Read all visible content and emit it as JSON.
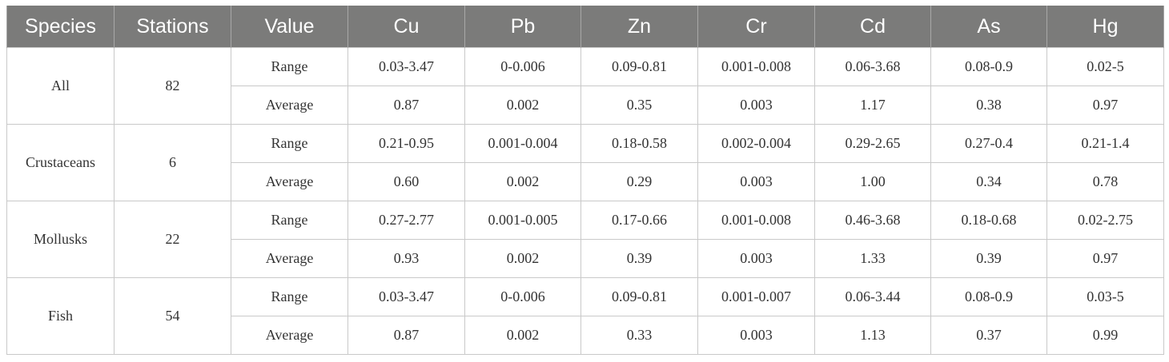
{
  "headers": [
    "Species",
    "Stations",
    "Value",
    "Cu",
    "Pb",
    "Zn",
    "Cr",
    "Cd",
    "As",
    "Hg"
  ],
  "groups": [
    {
      "species": "All",
      "stations": "82",
      "rows": [
        {
          "label": "Range",
          "values": [
            "0.03-3.47",
            "0-0.006",
            "0.09-0.81",
            "0.001-0.008",
            "0.06-3.68",
            "0.08-0.9",
            "0.02-5"
          ]
        },
        {
          "label": "Average",
          "values": [
            "0.87",
            "0.002",
            "0.35",
            "0.003",
            "1.17",
            "0.38",
            "0.97"
          ]
        }
      ]
    },
    {
      "species": "Crustaceans",
      "stations": "6",
      "rows": [
        {
          "label": "Range",
          "values": [
            "0.21-0.95",
            "0.001-0.004",
            "0.18-0.58",
            "0.002-0.004",
            "0.29-2.65",
            "0.27-0.4",
            "0.21-1.4"
          ]
        },
        {
          "label": "Average",
          "values": [
            "0.60",
            "0.002",
            "0.29",
            "0.003",
            "1.00",
            "0.34",
            "0.78"
          ]
        }
      ]
    },
    {
      "species": "Mollusks",
      "stations": "22",
      "rows": [
        {
          "label": "Range",
          "values": [
            "0.27-2.77",
            "0.001-0.005",
            "0.17-0.66",
            "0.001-0.008",
            "0.46-3.68",
            "0.18-0.68",
            "0.02-2.75"
          ]
        },
        {
          "label": "Average",
          "values": [
            "0.93",
            "0.002",
            "0.39",
            "0.003",
            "1.33",
            "0.39",
            "0.97"
          ]
        }
      ]
    },
    {
      "species": "Fish",
      "stations": "54",
      "rows": [
        {
          "label": "Range",
          "values": [
            "0.03-3.47",
            "0-0.006",
            "0.09-0.81",
            "0.001-0.007",
            "0.06-3.44",
            "0.08-0.9",
            "0.03-5"
          ]
        },
        {
          "label": "Average",
          "values": [
            "0.87",
            "0.002",
            "0.33",
            "0.003",
            "1.13",
            "0.37",
            "0.99"
          ]
        }
      ]
    }
  ]
}
